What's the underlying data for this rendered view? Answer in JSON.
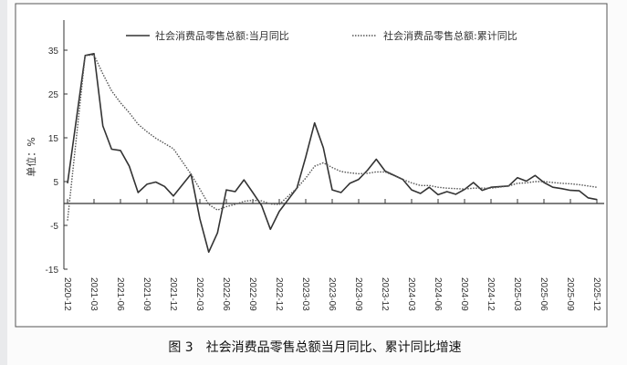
{
  "chart_data": {
    "type": "line",
    "title": "",
    "caption": "图 3　社会消费品零售总额当月同比、累计同比增速",
    "ylabel": "单位：%",
    "xlabel": "",
    "ylim": [
      -15,
      40
    ],
    "yticks": [
      35,
      25,
      15,
      5,
      -5,
      -15
    ],
    "xticks": [
      "2020-12",
      "2021-03",
      "2021-06",
      "2021-09",
      "2021-12",
      "2022-03",
      "2022-06",
      "2022-09",
      "2022-12",
      "2023-03",
      "2023-06",
      "2023-09",
      "2023-12",
      "2024-03",
      "2024-06",
      "2024-09",
      "2024-12",
      "2025-03",
      "2025-06",
      "2025-09",
      "2025-12"
    ],
    "legend_position": "top",
    "grid": false,
    "x": [
      "2020-12",
      "2021-02",
      "2021-03",
      "2021-04",
      "2021-05",
      "2021-06",
      "2021-07",
      "2021-08",
      "2021-09",
      "2021-10",
      "2021-11",
      "2021-12",
      "2022-02",
      "2022-03",
      "2022-04",
      "2022-05",
      "2022-06",
      "2022-07",
      "2022-08",
      "2022-09",
      "2022-10",
      "2022-11",
      "2022-12",
      "2023-02",
      "2023-03",
      "2023-04",
      "2023-05",
      "2023-06",
      "2023-07",
      "2023-08",
      "2023-09",
      "2023-10",
      "2023-11",
      "2023-12",
      "2024-02",
      "2024-03",
      "2024-04",
      "2024-05",
      "2024-06",
      "2024-07",
      "2024-08",
      "2024-09",
      "2024-10",
      "2024-11",
      "2024-12",
      "2025-02",
      "2025-03",
      "2025-04",
      "2025-05",
      "2025-06",
      "2025-07",
      "2025-08",
      "2025-09",
      "2025-10",
      "2025-11",
      "2025-12"
    ],
    "series": [
      {
        "name": "社会消费品零售总额:当月同比",
        "style": "solid",
        "color": "#333333",
        "values": [
          4.6,
          33.8,
          34.2,
          17.7,
          12.4,
          12.1,
          8.5,
          2.5,
          4.4,
          4.9,
          3.9,
          1.7,
          6.7,
          -3.5,
          -11.1,
          -6.7,
          3.1,
          2.7,
          5.4,
          2.5,
          -0.5,
          -5.9,
          -1.8,
          3.5,
          10.6,
          18.4,
          12.7,
          3.1,
          2.5,
          4.6,
          5.5,
          7.6,
          10.1,
          7.4,
          5.5,
          3.1,
          2.3,
          3.7,
          2.0,
          2.7,
          2.1,
          3.2,
          4.8,
          3.0,
          3.7,
          4.0,
          5.9,
          5.1,
          6.4,
          4.8,
          3.7,
          3.4,
          3.0,
          2.9,
          1.3,
          0.9
        ]
      },
      {
        "name": "社会消费品零售总额:累计同比",
        "style": "dotted",
        "color": "#555555",
        "values": [
          -3.9,
          33.8,
          33.9,
          29.6,
          25.7,
          23.0,
          20.7,
          18.1,
          16.4,
          14.9,
          13.7,
          12.5,
          6.7,
          3.3,
          -0.2,
          -1.5,
          -0.7,
          -0.2,
          0.5,
          0.7,
          0.6,
          -0.1,
          -0.2,
          3.5,
          5.8,
          8.5,
          9.3,
          8.2,
          7.3,
          7.0,
          6.8,
          6.9,
          7.2,
          7.2,
          5.5,
          4.7,
          4.1,
          4.1,
          3.7,
          3.5,
          3.4,
          3.3,
          3.5,
          3.5,
          3.5,
          4.0,
          4.6,
          4.7,
          5.0,
          5.0,
          4.8,
          4.6,
          4.5,
          4.3,
          4.0,
          3.7
        ]
      }
    ]
  }
}
